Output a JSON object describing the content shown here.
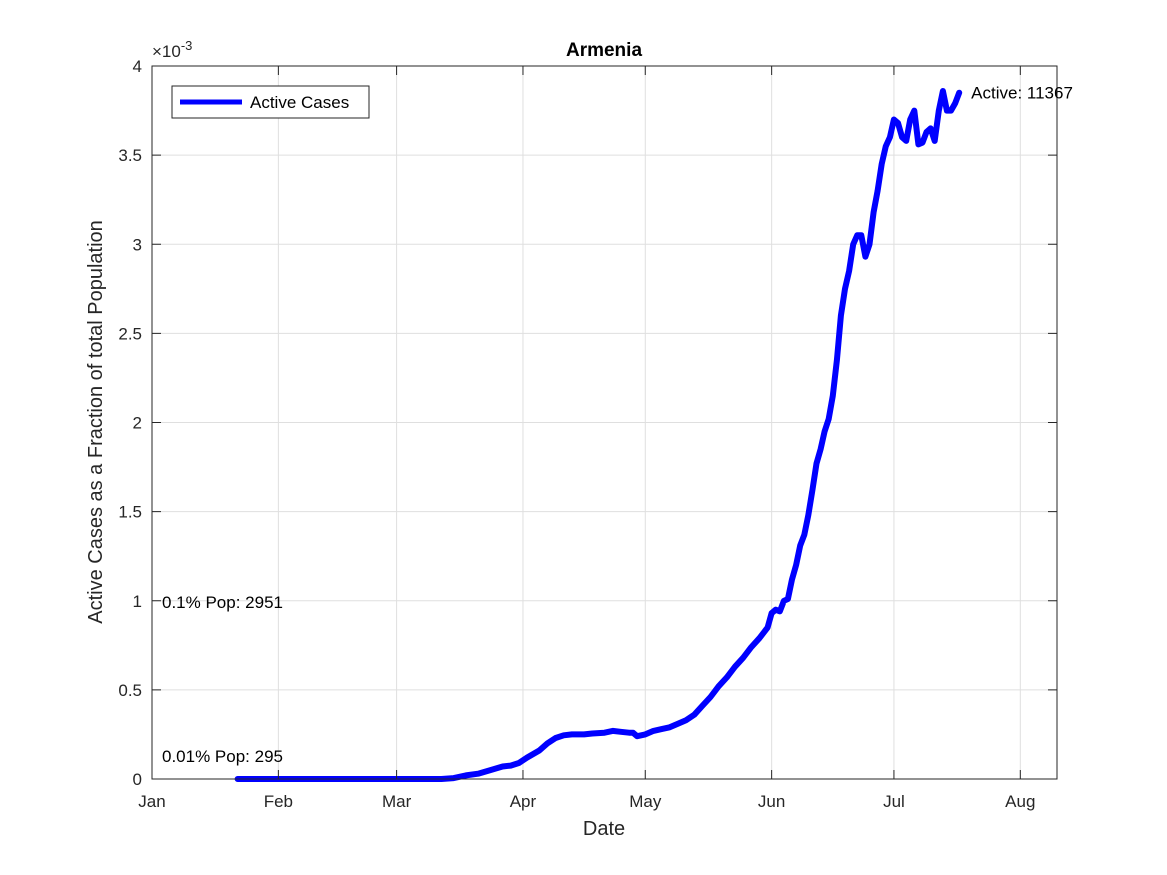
{
  "chart_data": {
    "type": "line",
    "title": "Armenia",
    "xlabel": "Date",
    "ylabel": "Active Cases as a Fraction of total Population",
    "exponent_label": "×10",
    "exponent_power": "-3",
    "grid": true,
    "legend_position": "top-left",
    "x_range": [
      "2020-01-01",
      "2020-08-10"
    ],
    "y_range": [
      0,
      0.004
    ],
    "x_ticks": [
      {
        "date": "2020-01-01",
        "label": "Jan"
      },
      {
        "date": "2020-02-01",
        "label": "Feb"
      },
      {
        "date": "2020-03-01",
        "label": "Mar"
      },
      {
        "date": "2020-04-01",
        "label": "Apr"
      },
      {
        "date": "2020-05-01",
        "label": "May"
      },
      {
        "date": "2020-06-01",
        "label": "Jun"
      },
      {
        "date": "2020-07-01",
        "label": "Jul"
      },
      {
        "date": "2020-08-01",
        "label": "Aug"
      }
    ],
    "y_ticks": [
      {
        "value": 0,
        "label": "0"
      },
      {
        "value": 0.0005,
        "label": "0.5"
      },
      {
        "value": 0.001,
        "label": "1"
      },
      {
        "value": 0.0015,
        "label": "1.5"
      },
      {
        "value": 0.002,
        "label": "2"
      },
      {
        "value": 0.0025,
        "label": "2.5"
      },
      {
        "value": 0.003,
        "label": "3"
      },
      {
        "value": 0.0035,
        "label": "3.5"
      },
      {
        "value": 0.004,
        "label": "4"
      }
    ],
    "series": [
      {
        "name": "Active Cases",
        "color": "#0000ff",
        "points": [
          [
            "2020-01-22",
            0
          ],
          [
            "2020-02-15",
            0
          ],
          [
            "2020-03-01",
            0
          ],
          [
            "2020-03-12",
            0
          ],
          [
            "2020-03-15",
            5e-06
          ],
          [
            "2020-03-18",
            2e-05
          ],
          [
            "2020-03-21",
            3e-05
          ],
          [
            "2020-03-24",
            5e-05
          ],
          [
            "2020-03-27",
            7e-05
          ],
          [
            "2020-03-29",
            7.5e-05
          ],
          [
            "2020-03-31",
            9e-05
          ],
          [
            "2020-04-02",
            0.00012
          ],
          [
            "2020-04-05",
            0.00016
          ],
          [
            "2020-04-07",
            0.0002
          ],
          [
            "2020-04-09",
            0.00023
          ],
          [
            "2020-04-11",
            0.000245
          ],
          [
            "2020-04-13",
            0.00025
          ],
          [
            "2020-04-16",
            0.00025
          ],
          [
            "2020-04-18",
            0.000255
          ],
          [
            "2020-04-21",
            0.00026
          ],
          [
            "2020-04-23",
            0.00027
          ],
          [
            "2020-04-25",
            0.000265
          ],
          [
            "2020-04-27",
            0.00026
          ],
          [
            "2020-04-28",
            0.00026
          ],
          [
            "2020-04-29",
            0.00024
          ],
          [
            "2020-05-01",
            0.00025
          ],
          [
            "2020-05-03",
            0.00027
          ],
          [
            "2020-05-05",
            0.00028
          ],
          [
            "2020-05-07",
            0.00029
          ],
          [
            "2020-05-09",
            0.00031
          ],
          [
            "2020-05-11",
            0.00033
          ],
          [
            "2020-05-13",
            0.00036
          ],
          [
            "2020-05-15",
            0.00041
          ],
          [
            "2020-05-17",
            0.00046
          ],
          [
            "2020-05-19",
            0.00052
          ],
          [
            "2020-05-21",
            0.00057
          ],
          [
            "2020-05-23",
            0.00063
          ],
          [
            "2020-05-25",
            0.00068
          ],
          [
            "2020-05-27",
            0.00074
          ],
          [
            "2020-05-29",
            0.00079
          ],
          [
            "2020-05-31",
            0.00085
          ],
          [
            "2020-06-01",
            0.00093
          ],
          [
            "2020-06-02",
            0.00095
          ],
          [
            "2020-06-03",
            0.00094
          ],
          [
            "2020-06-04",
            0.001
          ],
          [
            "2020-06-05",
            0.00101
          ],
          [
            "2020-06-06",
            0.00112
          ],
          [
            "2020-06-07",
            0.0012
          ],
          [
            "2020-06-08",
            0.00131
          ],
          [
            "2020-06-09",
            0.00137
          ],
          [
            "2020-06-10",
            0.00148
          ],
          [
            "2020-06-11",
            0.00162
          ],
          [
            "2020-06-12",
            0.00177
          ],
          [
            "2020-06-13",
            0.00185
          ],
          [
            "2020-06-14",
            0.00195
          ],
          [
            "2020-06-15",
            0.00202
          ],
          [
            "2020-06-16",
            0.00215
          ],
          [
            "2020-06-17",
            0.00235
          ],
          [
            "2020-06-18",
            0.0026
          ],
          [
            "2020-06-19",
            0.00275
          ],
          [
            "2020-06-20",
            0.00285
          ],
          [
            "2020-06-21",
            0.003
          ],
          [
            "2020-06-22",
            0.00305
          ],
          [
            "2020-06-23",
            0.00305
          ],
          [
            "2020-06-24",
            0.00293
          ],
          [
            "2020-06-25",
            0.003
          ],
          [
            "2020-06-26",
            0.00318
          ],
          [
            "2020-06-27",
            0.0033
          ],
          [
            "2020-06-28",
            0.00345
          ],
          [
            "2020-06-29",
            0.00355
          ],
          [
            "2020-06-30",
            0.0036
          ],
          [
            "2020-07-01",
            0.0037
          ],
          [
            "2020-07-02",
            0.00368
          ],
          [
            "2020-07-03",
            0.0036
          ],
          [
            "2020-07-04",
            0.00358
          ],
          [
            "2020-07-05",
            0.0037
          ],
          [
            "2020-07-06",
            0.00375
          ],
          [
            "2020-07-07",
            0.00356
          ],
          [
            "2020-07-08",
            0.00357
          ],
          [
            "2020-07-09",
            0.00363
          ],
          [
            "2020-07-10",
            0.00365
          ],
          [
            "2020-07-11",
            0.00358
          ],
          [
            "2020-07-12",
            0.00375
          ],
          [
            "2020-07-13",
            0.00386
          ],
          [
            "2020-07-14",
            0.00375
          ],
          [
            "2020-07-15",
            0.00375
          ],
          [
            "2020-07-16",
            0.00379
          ],
          [
            "2020-07-17",
            0.00385
          ]
        ]
      }
    ],
    "annotations": [
      {
        "text": "Active: 11367",
        "anchor": "series-end"
      },
      {
        "text": "0.1% Pop: 2951",
        "value": 0.001
      },
      {
        "text": "0.01% Pop: 295",
        "value": 0.0001
      }
    ]
  }
}
